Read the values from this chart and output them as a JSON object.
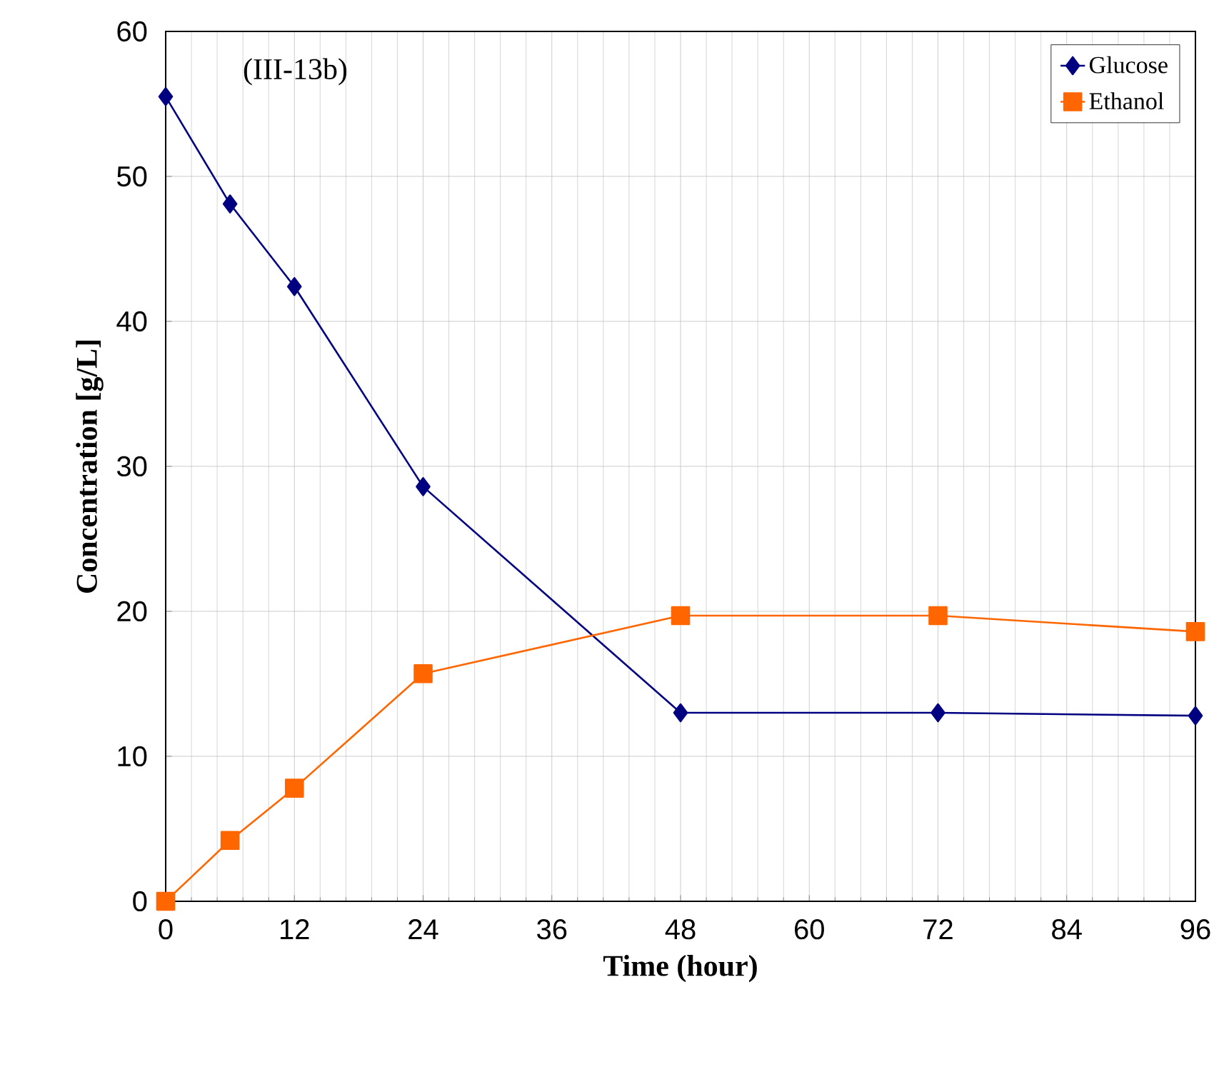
{
  "chart_data": {
    "type": "line",
    "xlabel": "Time (hour)",
    "ylabel": "Concentration [g/L]",
    "annotations": [
      "(III-13b)"
    ],
    "x": [
      0,
      6,
      12,
      24,
      48,
      72,
      96
    ],
    "series": [
      {
        "name": "Glucose",
        "color": "#000080",
        "marker": "diamond",
        "values": [
          55.5,
          48.1,
          42.4,
          28.6,
          13.0,
          13.0,
          12.8
        ]
      },
      {
        "name": "Ethanol",
        "color": "#ff6600",
        "marker": "square",
        "values": [
          0,
          4.2,
          7.8,
          15.7,
          19.7,
          19.7,
          18.6
        ]
      }
    ],
    "xlim": [
      0,
      96
    ],
    "xticks": [
      0,
      12,
      24,
      36,
      48,
      60,
      72,
      84,
      96
    ],
    "ylim": [
      0,
      60
    ],
    "yticks": [
      0,
      10,
      20,
      30,
      40,
      50,
      60
    ],
    "grid": true,
    "legend": "top right",
    "line_style": "solid"
  }
}
